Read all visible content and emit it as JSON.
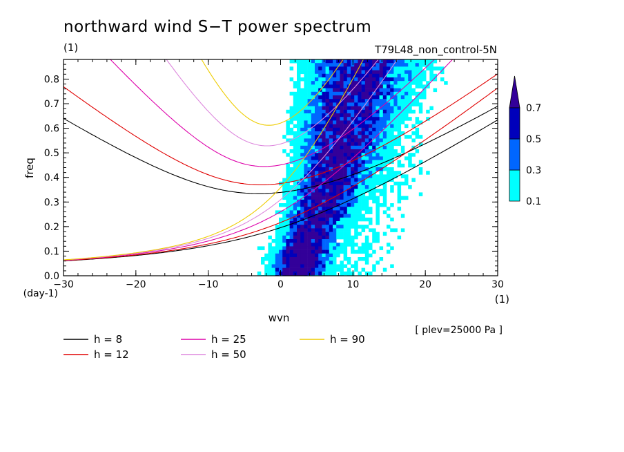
{
  "chart_data": {
    "type": "heatmap",
    "title": "northward wind S−T power spectrum",
    "subtitle_left": "(1)",
    "subtitle_right": "T79L48_non_control-5N",
    "xlabel": "wvn",
    "xunit": "(1)",
    "ylabel": "freq",
    "yunit": "(day-1)",
    "xlim": [
      -30,
      30
    ],
    "ylim": [
      0,
      0.88
    ],
    "xticks": [
      "−30",
      "−20",
      "−10",
      "0",
      "10",
      "20",
      "30"
    ],
    "xtick_values": [
      -30,
      -20,
      -10,
      0,
      10,
      20,
      30
    ],
    "yticks": [
      "0.0",
      "0.1",
      "0.2",
      "0.3",
      "0.4",
      "0.5",
      "0.6",
      "0.7",
      "0.8"
    ],
    "ytick_values": [
      0,
      0.1,
      0.2,
      0.3,
      0.4,
      0.5,
      0.6,
      0.7,
      0.8
    ],
    "note": "[ plev=25000 Pa ]",
    "colorbar": {
      "levels": [
        "0.1",
        "0.3",
        "0.5",
        "0.7"
      ],
      "level_values": [
        0.1,
        0.3,
        0.5,
        0.7
      ],
      "colors": [
        "#00ffff",
        "#0066ff",
        "#0000bb",
        "#330099"
      ]
    },
    "dispersion_curves": [
      {
        "label": "h = 8",
        "h": 8,
        "color": "#000000"
      },
      {
        "label": "h = 12",
        "h": 12,
        "color": "#e00000"
      },
      {
        "label": "h = 25",
        "h": 25,
        "color": "#dd00aa"
      },
      {
        "label": "h = 50",
        "h": 50,
        "color": "#dd88dd"
      },
      {
        "label": "h = 90",
        "h": 90,
        "color": "#eecc00"
      }
    ],
    "spectral_peak": {
      "ridge": [
        {
          "x": 2.0,
          "y": 0.0
        },
        {
          "x": 3.0,
          "y": 0.1
        },
        {
          "x": 4.5,
          "y": 0.2
        },
        {
          "x": 6.0,
          "y": 0.3
        },
        {
          "x": 7.0,
          "y": 0.4
        },
        {
          "x": 8.0,
          "y": 0.5
        },
        {
          "x": 8.5,
          "y": 0.6
        },
        {
          "x": 9.5,
          "y": 0.7
        },
        {
          "x": 10.5,
          "y": 0.8
        }
      ]
    }
  }
}
